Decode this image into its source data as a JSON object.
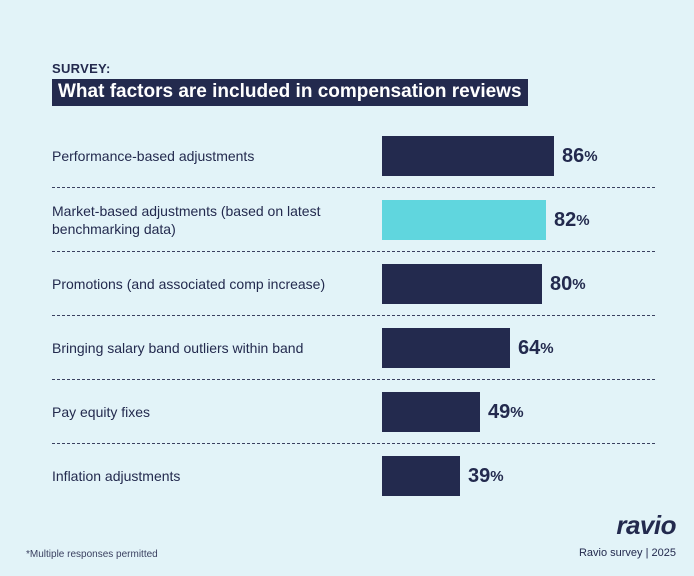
{
  "chart_data": {
    "type": "bar",
    "orientation": "horizontal",
    "eyebrow": "SURVEY:",
    "title": "What factors are included in compensation reviews",
    "categories": [
      "Performance-based adjustments",
      "Market-based adjustments (based on latest benchmarking data)",
      "Promotions (and associated comp increase)",
      "Bringing salary band outliers within band",
      "Pay equity fixes",
      "Inflation adjustments"
    ],
    "values": [
      86,
      82,
      80,
      64,
      49,
      39
    ],
    "value_labels": [
      "86",
      "82",
      "80",
      "64",
      "49",
      "39"
    ],
    "unit": "%",
    "xlim": [
      0,
      86
    ],
    "highlight_index": 1,
    "colors": {
      "bar": "#232a4e",
      "highlight": "#60d6de",
      "background": "#e2f3f8"
    }
  },
  "footer": {
    "logo": "ravio",
    "footnote": "*Multiple responses permitted",
    "source": "Ravio survey | 2025"
  }
}
